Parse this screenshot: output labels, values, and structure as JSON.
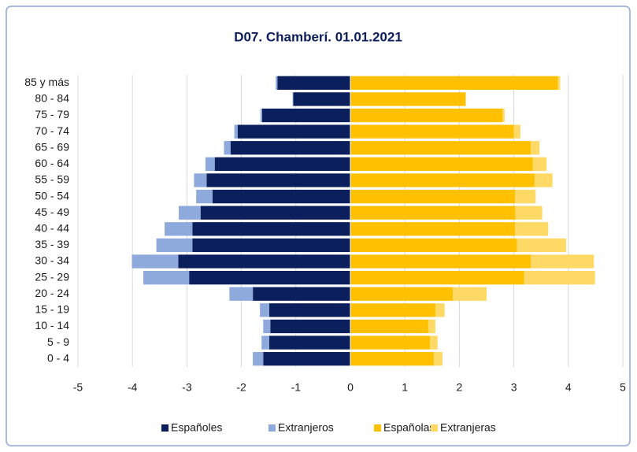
{
  "chart_data": {
    "type": "bar",
    "orientation": "horizontal",
    "stacked": true,
    "title": "D07. Chamberí. 01.01.2021",
    "categories": [
      "85 y más",
      "80 - 84",
      "75 - 79",
      "70 - 74",
      "65 - 69",
      "60 - 64",
      "55 - 59",
      "50 - 54",
      "45 - 49",
      "40 - 44",
      "35 - 39",
      "30 - 34",
      "25 - 29",
      "20 - 24",
      "15 - 19",
      "10 - 14",
      "5 - 9",
      "0 - 4"
    ],
    "series": [
      {
        "name": "Españoles",
        "color": "#0b1f5c",
        "values": [
          -1.34,
          -1.05,
          -1.62,
          -2.07,
          -2.2,
          -2.49,
          -2.64,
          -2.53,
          -2.75,
          -2.9,
          -2.9,
          -3.16,
          -2.96,
          -1.79,
          -1.49,
          -1.47,
          -1.49,
          -1.6
        ]
      },
      {
        "name": "Extranjeros",
        "color": "#8ea9db",
        "values": [
          -0.03,
          -0.01,
          -0.03,
          -0.06,
          -0.12,
          -0.17,
          -0.23,
          -0.3,
          -0.4,
          -0.51,
          -0.66,
          -0.85,
          -0.84,
          -0.43,
          -0.17,
          -0.13,
          -0.14,
          -0.19
        ]
      },
      {
        "name": "Españolas",
        "color": "#ffc000",
        "values": [
          3.81,
          2.11,
          2.79,
          3.0,
          3.31,
          3.35,
          3.38,
          3.02,
          3.03,
          3.02,
          3.06,
          3.31,
          3.19,
          1.88,
          1.56,
          1.43,
          1.46,
          1.53
        ]
      },
      {
        "name": "Extranjeras",
        "color": "#ffd966",
        "values": [
          0.04,
          0.01,
          0.04,
          0.12,
          0.16,
          0.25,
          0.33,
          0.38,
          0.49,
          0.61,
          0.9,
          1.16,
          1.3,
          0.62,
          0.17,
          0.13,
          0.14,
          0.16
        ]
      }
    ],
    "xlim": [
      -5,
      5
    ],
    "xticks": [
      -5,
      -4,
      -3,
      -2,
      -1,
      0,
      1,
      2,
      3,
      4,
      5
    ],
    "grid": true,
    "legend": "bottom"
  }
}
